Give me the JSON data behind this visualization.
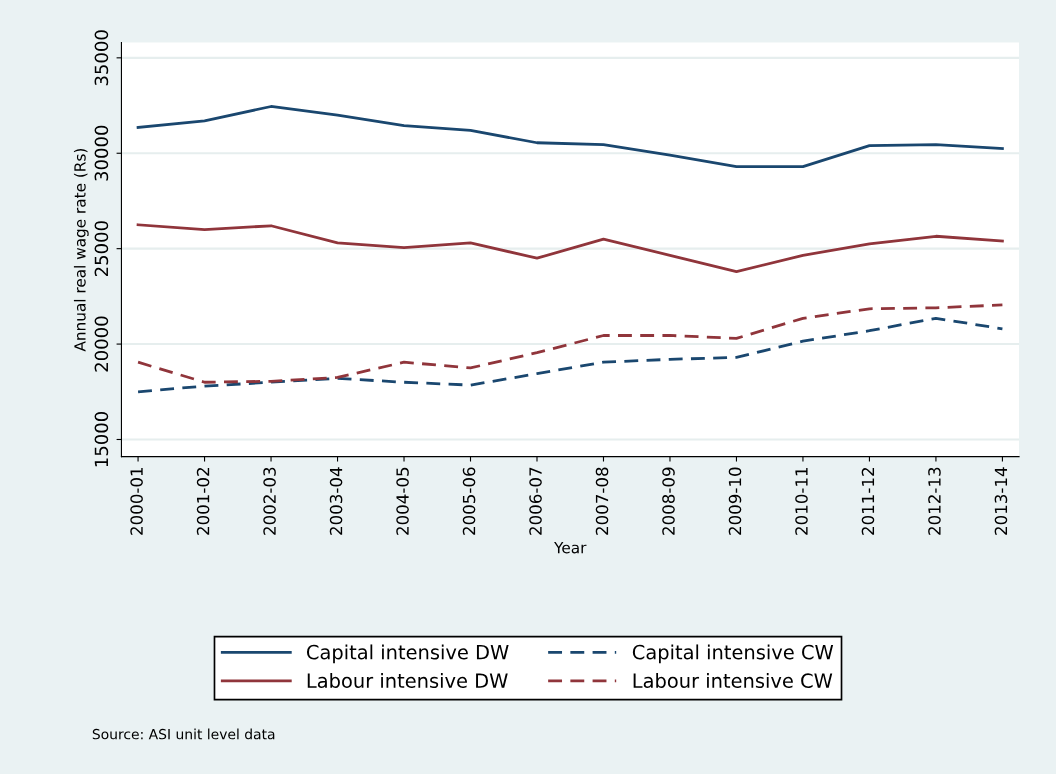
{
  "chart_data": {
    "type": "line",
    "xlabel": "Year",
    "ylabel": "Annual real wage rate (Rs)",
    "categories": [
      "2000-01",
      "2001-02",
      "2002-03",
      "2003-04",
      "2004-05",
      "2005-06",
      "2006-07",
      "2007-08",
      "2008-09",
      "2009-10",
      "2010-11",
      "2011-12",
      "2012-13",
      "2013-14"
    ],
    "series": [
      {
        "name": "Capital intensive DW",
        "color": "#1a476f",
        "line_style": "solid",
        "values": [
          31350,
          31700,
          32450,
          32000,
          31450,
          31200,
          30550,
          30450,
          29900,
          29300,
          29300,
          30400,
          30450,
          30250
        ]
      },
      {
        "name": "Capital intensive CW",
        "color": "#1a476f",
        "line_style": "dashed",
        "values": [
          17500,
          17800,
          18000,
          18200,
          18000,
          17850,
          18450,
          19050,
          19200,
          19300,
          20150,
          20700,
          21350,
          20800
        ]
      },
      {
        "name": "Labour intensive DW",
        "color": "#90353b",
        "line_style": "solid",
        "values": [
          26250,
          26000,
          26200,
          25300,
          25050,
          25300,
          24500,
          25500,
          24650,
          23800,
          24650,
          25250,
          25650,
          25400
        ]
      },
      {
        "name": "Labour intensive CW",
        "color": "#90353b",
        "line_style": "dashed",
        "values": [
          19050,
          18000,
          18050,
          18250,
          19050,
          18750,
          19550,
          20450,
          20450,
          20300,
          21350,
          21850,
          21900,
          22050
        ]
      }
    ],
    "ylim": [
      14100,
      35800
    ],
    "yticks": [
      15000,
      20000,
      25000,
      30000,
      35000
    ],
    "grid": "y",
    "legend": "bottom",
    "annotations": [
      "Source: ASI unit level data"
    ]
  }
}
